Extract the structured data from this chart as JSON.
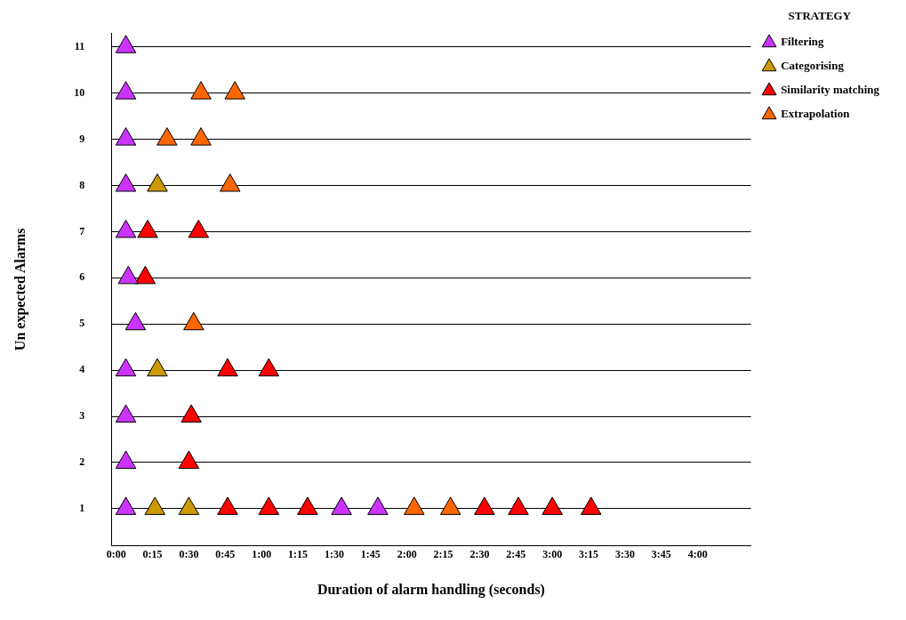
{
  "chart_data": {
    "type": "scatter",
    "xlabel": "Duration of alarm handling (seconds)",
    "ylabel": "Un expected Alarms",
    "legend_title": "STRATEGY",
    "legend": "top right",
    "grid": "y",
    "marker": "triangle",
    "xlim": [
      -2,
      262
    ],
    "xticks": [
      {
        "value": 0,
        "label": "0:00"
      },
      {
        "value": 15,
        "label": "0:15"
      },
      {
        "value": 30,
        "label": "0:30"
      },
      {
        "value": 45,
        "label": "0:45"
      },
      {
        "value": 60,
        "label": "1:00"
      },
      {
        "value": 75,
        "label": "1:15"
      },
      {
        "value": 90,
        "label": "1:30"
      },
      {
        "value": 105,
        "label": "1:45"
      },
      {
        "value": 120,
        "label": "2:00"
      },
      {
        "value": 135,
        "label": "2:15"
      },
      {
        "value": 150,
        "label": "2:30"
      },
      {
        "value": 165,
        "label": "2:45"
      },
      {
        "value": 180,
        "label": "3:00"
      },
      {
        "value": 195,
        "label": "3:15"
      },
      {
        "value": 210,
        "label": "3:30"
      },
      {
        "value": 225,
        "label": "3:45"
      },
      {
        "value": 240,
        "label": "4:00"
      }
    ],
    "ylim": [
      0.2,
      11.3
    ],
    "yticks": [
      1,
      2,
      3,
      4,
      5,
      6,
      7,
      8,
      9,
      10,
      11
    ],
    "series": [
      {
        "name": "Filtering",
        "color": "#cc33ff",
        "x": [
          4,
          4,
          4,
          4,
          5,
          8,
          4,
          4,
          4,
          4,
          4,
          93,
          108
        ],
        "values": [
          11,
          10,
          9,
          8,
          6,
          5,
          4,
          3,
          2,
          1,
          7,
          1,
          1
        ]
      },
      {
        "name": "Categorising",
        "color": "#cc9900",
        "x": [
          17,
          17,
          16,
          30
        ],
        "values": [
          8,
          4,
          1,
          1
        ]
      },
      {
        "name": "Similarity matching",
        "color": "#ff0000",
        "x": [
          13,
          34,
          12,
          46,
          63,
          31,
          30,
          46,
          63,
          79,
          152,
          166,
          180,
          196
        ],
        "values": [
          7,
          7,
          6,
          4,
          4,
          3,
          2,
          1,
          1,
          1,
          1,
          1,
          1,
          1
        ]
      },
      {
        "name": "Extrapolation",
        "color": "#ff6600",
        "x": [
          35,
          49,
          21,
          35,
          47,
          32,
          123,
          138
        ],
        "values": [
          10,
          10,
          9,
          9,
          8,
          5,
          1,
          1
        ]
      }
    ]
  }
}
